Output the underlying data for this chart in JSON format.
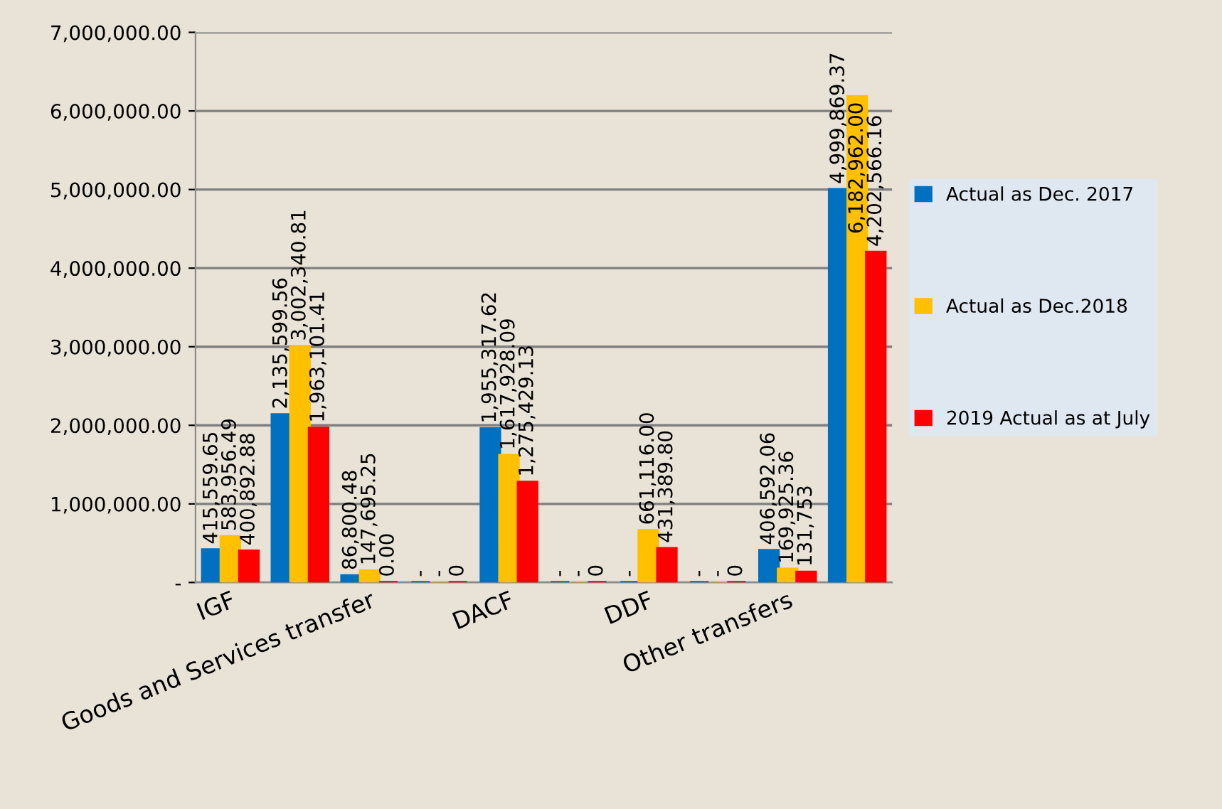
{
  "chart_data": {
    "type": "bar",
    "categories": [
      "IGF",
      null,
      "Goods and Services transfer",
      null,
      "DACF",
      null,
      "DDF",
      null,
      "Other transfers",
      null
    ],
    "series": [
      {
        "name": "Actual as Dec. 2017",
        "color": "#0070c0",
        "values": [
          415559.65,
          2135599.56,
          86800.48,
          0,
          1955317.62,
          0,
          0,
          0,
          406592.06,
          4999869.37
        ],
        "value_labels": [
          "415,559.65",
          "2,135,599.56",
          "86,800.48",
          "-",
          "1,955,317.62",
          "-",
          "-",
          "-",
          "406,592.06",
          "4,999,869.37"
        ]
      },
      {
        "name": "Actual as Dec.2018",
        "color": "#ffc000",
        "values": [
          583956.49,
          3002340.81,
          147695.25,
          0,
          1617928.09,
          0,
          661116.0,
          0,
          169925.36,
          6182962.0
        ],
        "value_labels": [
          "583,956.49",
          "3,002,340.81",
          "147,695.25",
          "-",
          "1,617,928.09",
          "-",
          "661,116.00",
          "-",
          "169,925.36",
          "6,182,962.00"
        ]
      },
      {
        "name": "2019 Actual as at July",
        "color": "#ff0000",
        "values": [
          400892.88,
          1963101.41,
          0.0,
          0,
          1275429.13,
          0,
          431389.8,
          0,
          131753,
          4202566.16
        ],
        "value_labels": [
          "400,892.88",
          "1,963,101.41",
          "0.00",
          "0",
          "1,275,429.13",
          "0",
          "431,389.80",
          "0",
          "131,753",
          "4,202,566.16"
        ]
      }
    ],
    "ylim": [
      0,
      7000000
    ],
    "yticks": [
      {
        "value": 0,
        "label": "-"
      },
      {
        "value": 1000000,
        "label": "1,000,000.00"
      },
      {
        "value": 2000000,
        "label": "2,000,000.00"
      },
      {
        "value": 3000000,
        "label": "3,000,000.00"
      },
      {
        "value": 4000000,
        "label": "4,000,000.00"
      },
      {
        "value": 5000000,
        "label": "5,000,000.00"
      },
      {
        "value": 6000000,
        "label": "6,000,000.00"
      },
      {
        "value": 7000000,
        "label": "7,000,000.00"
      }
    ],
    "grid": "y",
    "legend": "right"
  }
}
